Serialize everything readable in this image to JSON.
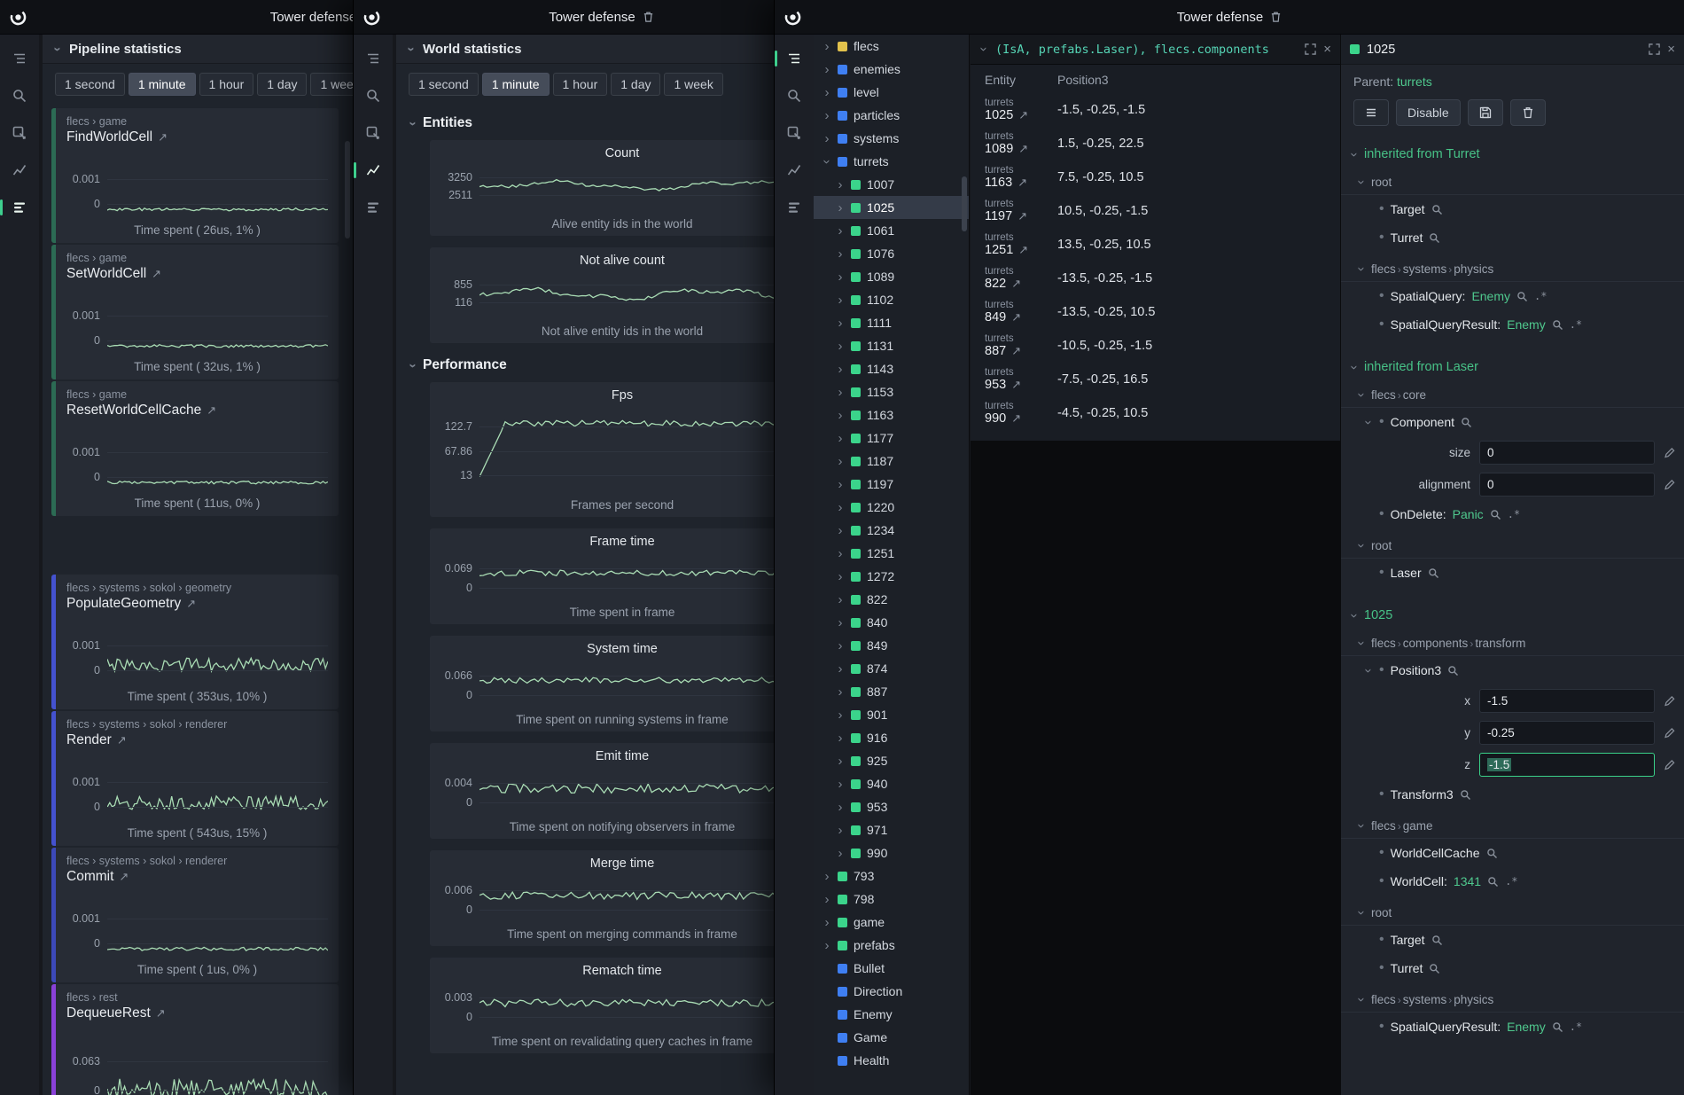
{
  "shared": {
    "time_ranges": [
      "1 second",
      "1 minute",
      "1 hour",
      "1 day",
      "1 week"
    ],
    "active_range": "1 minute"
  },
  "pipeline": {
    "window_title": "Tower defense",
    "panel_title": "Pipeline statistics",
    "active_tool": "stats",
    "cards": [
      {
        "breadcrumb": "flecs › game",
        "name": "FindWorldCell",
        "caption": "Time spent ( 26us, 1% )",
        "bar": "#2c6b54",
        "ticks": [
          {
            "label": "0.001",
            "pos": 0.42
          },
          {
            "label": "0",
            "pos": 0.78
          }
        ],
        "line": {
          "base": 0.86,
          "amp": 0.02
        }
      },
      {
        "breadcrumb": "flecs › game",
        "name": "SetWorldCell",
        "caption": "Time spent ( 32us, 1% )",
        "bar": "#2c6b54",
        "ticks": [
          {
            "label": "0.001",
            "pos": 0.42
          },
          {
            "label": "0",
            "pos": 0.78
          }
        ],
        "line": {
          "base": 0.86,
          "amp": 0.02
        }
      },
      {
        "breadcrumb": "flecs › game",
        "name": "ResetWorldCellCache",
        "caption": "Time spent ( 11us, 0% )",
        "bar": "#2c6b54",
        "ticks": [
          {
            "label": "0.001",
            "pos": 0.42
          },
          {
            "label": "0",
            "pos": 0.78
          }
        ],
        "line": {
          "base": 0.86,
          "amp": 0.02
        }
      },
      {
        "breadcrumb": "flecs › systems › sokol › geometry",
        "name": "PopulateGeometry",
        "caption": "Time spent ( 353us, 10% )",
        "bar": "#4452cf",
        "gap_before": true,
        "ticks": [
          {
            "label": "0.001",
            "pos": 0.42
          },
          {
            "label": "0",
            "pos": 0.78
          }
        ],
        "line": {
          "base": 0.7,
          "amp": 0.1
        }
      },
      {
        "breadcrumb": "flecs › systems › sokol › renderer",
        "name": "Render",
        "caption": "Time spent ( 543us, 15% )",
        "bar": "#4452cf",
        "ticks": [
          {
            "label": "0.001",
            "pos": 0.42
          },
          {
            "label": "0",
            "pos": 0.78
          }
        ],
        "line": {
          "base": 0.72,
          "amp": 0.1
        }
      },
      {
        "breadcrumb": "flecs › systems › sokol › renderer",
        "name": "Commit",
        "caption": "Time spent ( 1us, 0% )",
        "bar": "#3c49b8",
        "ticks": [
          {
            "label": "0.001",
            "pos": 0.42
          },
          {
            "label": "0",
            "pos": 0.78
          }
        ],
        "line": {
          "base": 0.86,
          "amp": 0.025
        }
      },
      {
        "breadcrumb": "flecs › rest",
        "name": "DequeueRest",
        "caption": "",
        "bar": "#8a41d8",
        "ticks": [
          {
            "label": "0.063",
            "pos": 0.42
          },
          {
            "label": "0",
            "pos": 0.78
          }
        ],
        "line": {
          "base": 0.76,
          "amp": 0.12
        }
      }
    ]
  },
  "world": {
    "window_title": "Tower defense",
    "panel_title": "World statistics",
    "active_tool": "chart",
    "sections": [
      {
        "label": "Entities",
        "cards": [
          {
            "title": "Count",
            "caption": "Alive entity ids in the world",
            "ticks": [
              {
                "label": "3250",
                "pos": 0.25
              },
              {
                "label": "2511",
                "pos": 0.62
              }
            ],
            "line": {
              "base": 0.42,
              "amp": 0.1,
              "smooth": true
            }
          },
          {
            "title": "Not alive count",
            "caption": "Not alive entity ids in the world",
            "ticks": [
              {
                "label": "855",
                "pos": 0.25
              },
              {
                "label": "116",
                "pos": 0.62
              }
            ],
            "line": {
              "base": 0.45,
              "amp": 0.12,
              "smooth": true
            }
          }
        ]
      },
      {
        "label": "Performance",
        "cards": [
          {
            "title": "Fps",
            "caption": "Frames per second",
            "tall": true,
            "ticks": [
              {
                "label": "122.7",
                "pos": 0.22
              },
              {
                "label": "67.86",
                "pos": 0.5
              },
              {
                "label": "13",
                "pos": 0.78
              }
            ],
            "line": {
              "base": 0.18,
              "amp": 0.035,
              "dip": 0.62
            }
          },
          {
            "title": "Frame time",
            "caption": "Time spent in frame",
            "ticks": [
              {
                "label": "0.069",
                "pos": 0.3
              },
              {
                "label": "0",
                "pos": 0.72
              }
            ],
            "line": {
              "base": 0.4,
              "amp": 0.06
            }
          },
          {
            "title": "System time",
            "caption": "Time spent on running systems in frame",
            "ticks": [
              {
                "label": "0.066",
                "pos": 0.3
              },
              {
                "label": "0",
                "pos": 0.72
              }
            ],
            "line": {
              "base": 0.4,
              "amp": 0.06
            }
          },
          {
            "title": "Emit time",
            "caption": "Time spent on notifying observers in frame",
            "ticks": [
              {
                "label": "0.004",
                "pos": 0.3
              },
              {
                "label": "0",
                "pos": 0.72
              }
            ],
            "line": {
              "base": 0.42,
              "amp": 0.1
            }
          },
          {
            "title": "Merge time",
            "caption": "Time spent on merging commands in frame",
            "ticks": [
              {
                "label": "0.006",
                "pos": 0.3
              },
              {
                "label": "0",
                "pos": 0.72
              }
            ],
            "line": {
              "base": 0.42,
              "amp": 0.08
            }
          },
          {
            "title": "Rematch time",
            "caption": "Time spent on revalidating query caches in frame",
            "ticks": [
              {
                "label": "0.003",
                "pos": 0.3
              },
              {
                "label": "0",
                "pos": 0.72
              }
            ],
            "line": {
              "base": 0.42,
              "amp": 0.08
            }
          }
        ]
      }
    ]
  },
  "main": {
    "window_title": "Tower defense",
    "active_tool": "tree",
    "tree": {
      "items": [
        {
          "label": "flecs",
          "color": "#e2c24c",
          "chevron": true
        },
        {
          "label": "enemies",
          "color": "#3f7ff2",
          "chevron": true
        },
        {
          "label": "level",
          "color": "#3f7ff2",
          "chevron": true
        },
        {
          "label": "particles",
          "color": "#3f7ff2",
          "chevron": true
        },
        {
          "label": "systems",
          "color": "#3f7ff2",
          "chevron": true
        },
        {
          "label": "turrets",
          "color": "#3f7ff2",
          "chevron": true,
          "expanded": true
        },
        {
          "label": "1007",
          "color": "#3bd48b",
          "chevron": true,
          "indent": 1
        },
        {
          "label": "1025",
          "color": "#3bd48b",
          "chevron": true,
          "indent": 1,
          "selected": true
        },
        {
          "label": "1061",
          "color": "#3bd48b",
          "chevron": true,
          "indent": 1
        },
        {
          "label": "1076",
          "color": "#3bd48b",
          "chevron": true,
          "indent": 1
        },
        {
          "label": "1089",
          "color": "#3bd48b",
          "chevron": true,
          "indent": 1
        },
        {
          "label": "1102",
          "color": "#3bd48b",
          "chevron": true,
          "indent": 1
        },
        {
          "label": "1111",
          "color": "#3bd48b",
          "chevron": true,
          "indent": 1
        },
        {
          "label": "1131",
          "color": "#3bd48b",
          "chevron": true,
          "indent": 1
        },
        {
          "label": "1143",
          "color": "#3bd48b",
          "chevron": true,
          "indent": 1
        },
        {
          "label": "1153",
          "color": "#3bd48b",
          "chevron": true,
          "indent": 1
        },
        {
          "label": "1163",
          "color": "#3bd48b",
          "chevron": true,
          "indent": 1
        },
        {
          "label": "1177",
          "color": "#3bd48b",
          "chevron": true,
          "indent": 1
        },
        {
          "label": "1187",
          "color": "#3bd48b",
          "chevron": true,
          "indent": 1
        },
        {
          "label": "1197",
          "color": "#3bd48b",
          "chevron": true,
          "indent": 1
        },
        {
          "label": "1220",
          "color": "#3bd48b",
          "chevron": true,
          "indent": 1
        },
        {
          "label": "1234",
          "color": "#3bd48b",
          "chevron": true,
          "indent": 1
        },
        {
          "label": "1251",
          "color": "#3bd48b",
          "chevron": true,
          "indent": 1
        },
        {
          "label": "1272",
          "color": "#3bd48b",
          "chevron": true,
          "indent": 1
        },
        {
          "label": "822",
          "color": "#3bd48b",
          "chevron": true,
          "indent": 1
        },
        {
          "label": "840",
          "color": "#3bd48b",
          "chevron": true,
          "indent": 1
        },
        {
          "label": "849",
          "color": "#3bd48b",
          "chevron": true,
          "indent": 1
        },
        {
          "label": "874",
          "color": "#3bd48b",
          "chevron": true,
          "indent": 1
        },
        {
          "label": "887",
          "color": "#3bd48b",
          "chevron": true,
          "indent": 1
        },
        {
          "label": "901",
          "color": "#3bd48b",
          "chevron": true,
          "indent": 1
        },
        {
          "label": "916",
          "color": "#3bd48b",
          "chevron": true,
          "indent": 1
        },
        {
          "label": "925",
          "color": "#3bd48b",
          "chevron": true,
          "indent": 1
        },
        {
          "label": "940",
          "color": "#3bd48b",
          "chevron": true,
          "indent": 1
        },
        {
          "label": "953",
          "color": "#3bd48b",
          "chevron": true,
          "indent": 1
        },
        {
          "label": "971",
          "color": "#3bd48b",
          "chevron": true,
          "indent": 1
        },
        {
          "label": "990",
          "color": "#3bd48b",
          "chevron": true,
          "indent": 1
        },
        {
          "label": "793",
          "color": "#3bd48b",
          "chevron": true
        },
        {
          "label": "798",
          "color": "#3bd48b",
          "chevron": true
        },
        {
          "label": "game",
          "color": "#3bd48b",
          "chevron": true
        },
        {
          "label": "prefabs",
          "color": "#3bd48b",
          "chevron": true
        },
        {
          "label": "Bullet",
          "color": "#3f7ff2",
          "chevron": false
        },
        {
          "label": "Direction",
          "color": "#3f7ff2",
          "chevron": false
        },
        {
          "label": "Enemy",
          "color": "#3f7ff2",
          "chevron": false
        },
        {
          "label": "Game",
          "color": "#3f7ff2",
          "chevron": false
        },
        {
          "label": "Health",
          "color": "#3f7ff2",
          "chevron": false
        }
      ]
    },
    "query": {
      "expression": "(IsA, prefabs.Laser), flecs.components",
      "columns": [
        "Entity",
        "Position3"
      ],
      "rows": [
        {
          "parent": "turrets",
          "entity": "1025",
          "value": "-1.5, -0.25, -1.5"
        },
        {
          "parent": "turrets",
          "entity": "1089",
          "value": "1.5, -0.25, 22.5"
        },
        {
          "parent": "turrets",
          "entity": "1163",
          "value": "7.5, -0.25, 10.5"
        },
        {
          "parent": "turrets",
          "entity": "1197",
          "value": "10.5, -0.25, -1.5"
        },
        {
          "parent": "turrets",
          "entity": "1251",
          "value": "13.5, -0.25, 10.5"
        },
        {
          "parent": "turrets",
          "entity": "822",
          "value": "-13.5, -0.25, -1.5"
        },
        {
          "parent": "turrets",
          "entity": "849",
          "value": "-13.5, -0.25, 10.5"
        },
        {
          "parent": "turrets",
          "entity": "887",
          "value": "-10.5, -0.25, -1.5"
        },
        {
          "parent": "turrets",
          "entity": "953",
          "value": "-7.5, -0.25, 16.5"
        },
        {
          "parent": "turrets",
          "entity": "990",
          "value": "-4.5, -0.25, 10.5"
        }
      ]
    },
    "inspector": {
      "title": "1025",
      "title_color": "#3bd48b",
      "parent_label": "Parent:",
      "parent_value": "turrets",
      "toolbar": {
        "disable_label": "Disable"
      },
      "sections": [
        {
          "title": "inherited from Turret",
          "groups": [
            {
              "path": [
                "root"
              ],
              "items": [
                {
                  "name": "Target",
                  "search": true
                },
                {
                  "name": "Turret",
                  "search": true
                }
              ]
            },
            {
              "path": [
                "flecs",
                "systems",
                "physics"
              ],
              "items": [
                {
                  "name": "SpatialQuery:",
                  "value": "Enemy",
                  "search": true,
                  "pair": true
                },
                {
                  "name": "SpatialQueryResult:",
                  "value": "Enemy",
                  "search": true,
                  "pair": true
                }
              ]
            }
          ]
        },
        {
          "title": "inherited from Laser",
          "groups": [
            {
              "path": [
                "flecs",
                "core"
              ],
              "items": [
                {
                  "name": "Component",
                  "search": true,
                  "fields": [
                    {
                      "label": "size",
                      "value": "0"
                    },
                    {
                      "label": "alignment",
                      "value": "0"
                    }
                  ]
                },
                {
                  "name": "OnDelete:",
                  "value": "Panic",
                  "search": true,
                  "pair": true
                }
              ]
            },
            {
              "path": [
                "root"
              ],
              "items": [
                {
                  "name": "Laser",
                  "search": true
                }
              ]
            }
          ]
        },
        {
          "title": "1025",
          "groups": [
            {
              "path": [
                "flecs",
                "components",
                "transform"
              ],
              "items": [
                {
                  "name": "Position3",
                  "search": true,
                  "fields": [
                    {
                      "label": "x",
                      "value": "-1.5"
                    },
                    {
                      "label": "y",
                      "value": "-0.25"
                    },
                    {
                      "label": "z",
                      "value": "-1.5",
                      "focused": true
                    }
                  ]
                },
                {
                  "name": "Transform3",
                  "search": true
                }
              ]
            },
            {
              "path": [
                "flecs",
                "game"
              ],
              "items": [
                {
                  "name": "WorldCellCache",
                  "search": true
                },
                {
                  "name": "WorldCell:",
                  "value": "1341",
                  "search": true,
                  "pair": true
                }
              ]
            },
            {
              "path": [
                "root"
              ],
              "items": [
                {
                  "name": "Target",
                  "search": true
                },
                {
                  "name": "Turret",
                  "search": true
                }
              ]
            },
            {
              "path": [
                "flecs",
                "systems",
                "physics"
              ],
              "items": [
                {
                  "name": "SpatialQueryResult:",
                  "value": "Enemy",
                  "search": true,
                  "pair": true
                }
              ]
            }
          ]
        }
      ]
    }
  }
}
